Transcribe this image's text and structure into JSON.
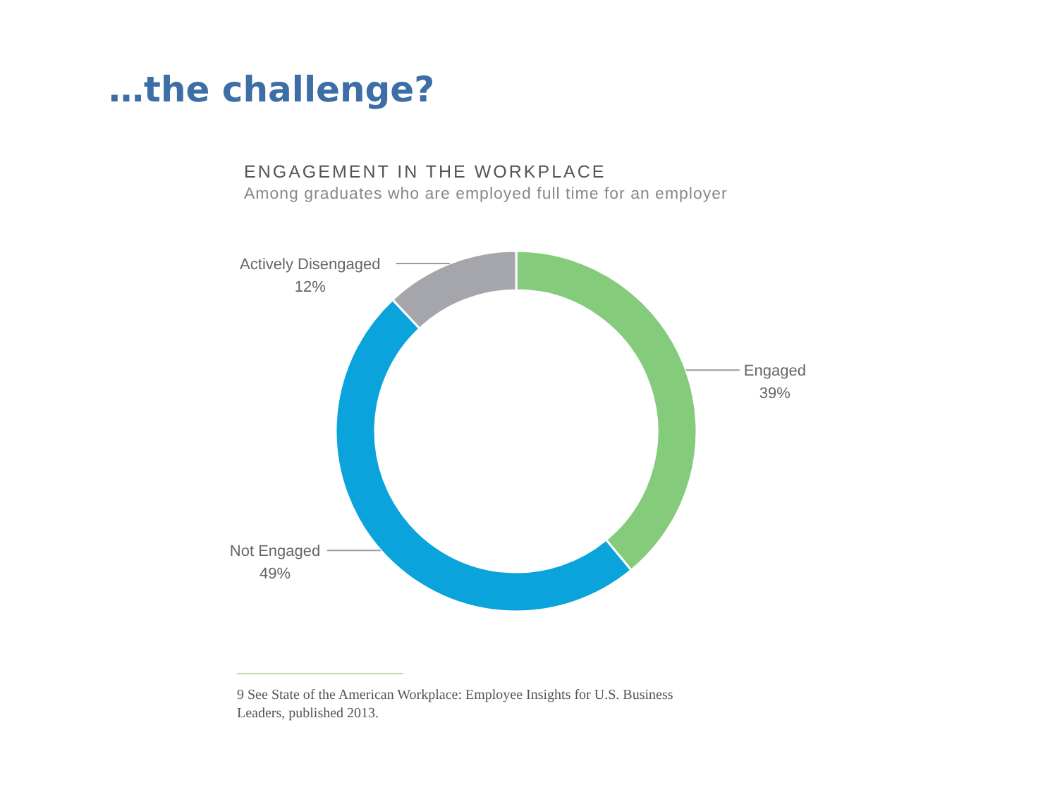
{
  "chart_data": {
    "type": "donut",
    "title": "ENGAGEMENT IN THE WORKPLACE",
    "subtitle": "Among graduates who are employed full time for an employer",
    "annotations": [
      "…the challenge?",
      "9   See State of the American Workplace: Employee Insights for U.S. Business Leaders, published 2013."
    ],
    "categories": [
      "Engaged",
      "Not Engaged",
      "Actively Disengaged"
    ],
    "values": [
      39,
      49,
      12
    ],
    "colors": [
      "#84cc7c",
      "#0aa3dc",
      "#a5a5ac"
    ],
    "value_labels": [
      "39%",
      "49%",
      "12%"
    ],
    "legend": false
  }
}
